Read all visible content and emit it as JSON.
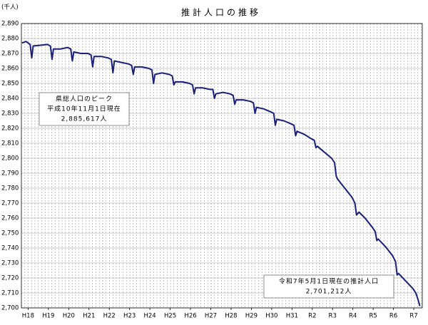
{
  "chart_data": {
    "type": "line",
    "title": "推計人口の推移",
    "y_unit": "(千人)",
    "color": "#1a1f7a",
    "grid": true,
    "xlim": [
      -0.33,
      19.42
    ],
    "xticks": [
      {
        "value": 0,
        "label": "H18"
      },
      {
        "value": 1,
        "label": "H19"
      },
      {
        "value": 2,
        "label": "H20"
      },
      {
        "value": 3,
        "label": "H21"
      },
      {
        "value": 4,
        "label": "H22"
      },
      {
        "value": 5,
        "label": "H23"
      },
      {
        "value": 6,
        "label": "H24"
      },
      {
        "value": 7,
        "label": "H25"
      },
      {
        "value": 8,
        "label": "H26"
      },
      {
        "value": 9,
        "label": "H27"
      },
      {
        "value": 10,
        "label": "H28"
      },
      {
        "value": 11,
        "label": "H29"
      },
      {
        "value": 12,
        "label": "H30"
      },
      {
        "value": 13,
        "label": "H31"
      },
      {
        "value": 14,
        "label": "R2"
      },
      {
        "value": 15,
        "label": "R3"
      },
      {
        "value": 16,
        "label": "R4"
      },
      {
        "value": 17,
        "label": "R5"
      },
      {
        "value": 18,
        "label": "R6"
      },
      {
        "value": 19,
        "label": "R7"
      }
    ],
    "ylim": [
      2700,
      2890
    ],
    "yticks": [
      {
        "value": 2700,
        "label": "2,700"
      },
      {
        "value": 2710,
        "label": "2,710"
      },
      {
        "value": 2720,
        "label": "2,720"
      },
      {
        "value": 2730,
        "label": "2,730"
      },
      {
        "value": 2740,
        "label": "2,740"
      },
      {
        "value": 2750,
        "label": "2,750"
      },
      {
        "value": 2760,
        "label": "2,760"
      },
      {
        "value": 2770,
        "label": "2,770"
      },
      {
        "value": 2780,
        "label": "2,780"
      },
      {
        "value": 2790,
        "label": "2,790"
      },
      {
        "value": 2800,
        "label": "2,800"
      },
      {
        "value": 2810,
        "label": "2,810"
      },
      {
        "value": 2820,
        "label": "2,820"
      },
      {
        "value": 2830,
        "label": "2,830"
      },
      {
        "value": 2840,
        "label": "2,840"
      },
      {
        "value": 2850,
        "label": "2,850"
      },
      {
        "value": 2860,
        "label": "2,860"
      },
      {
        "value": 2870,
        "label": "2,870"
      },
      {
        "value": 2880,
        "label": "2,880"
      },
      {
        "value": 2890,
        "label": "2,890"
      }
    ],
    "x": [
      -0.3,
      -0.1,
      0.1,
      0.18,
      0.25,
      0.6,
      0.95,
      1.1,
      1.18,
      1.25,
      1.6,
      1.95,
      2.1,
      2.18,
      2.25,
      2.6,
      2.95,
      3.1,
      3.18,
      3.25,
      3.6,
      3.95,
      4.1,
      4.18,
      4.25,
      4.6,
      4.95,
      5.1,
      5.18,
      5.25,
      5.6,
      5.95,
      6.1,
      6.18,
      6.25,
      6.6,
      6.95,
      7.1,
      7.18,
      7.25,
      7.6,
      7.95,
      8.1,
      8.18,
      8.25,
      8.6,
      8.95,
      9.1,
      9.18,
      9.25,
      9.6,
      9.95,
      10.1,
      10.18,
      10.25,
      10.6,
      10.95,
      11.1,
      11.18,
      11.25,
      11.6,
      11.95,
      12.1,
      12.18,
      12.25,
      12.6,
      12.95,
      13.1,
      13.18,
      13.25,
      13.6,
      13.95,
      14.1,
      14.18,
      14.25,
      14.6,
      14.95,
      15.1,
      15.18,
      15.25,
      15.6,
      15.95,
      16.1,
      16.18,
      16.3,
      16.6,
      16.95,
      17.1,
      17.18,
      17.25,
      17.6,
      17.95,
      18.1,
      18.18,
      18.25,
      18.6,
      18.95,
      19.1,
      19.2,
      19.3
    ],
    "values": [
      2877,
      2878,
      2876,
      2867,
      2875,
      2875.5,
      2876,
      2875,
      2866,
      2873,
      2873,
      2874,
      2873,
      2865,
      2871,
      2870,
      2870,
      2869,
      2861,
      2868,
      2868,
      2867,
      2866,
      2857,
      2865,
      2864,
      2863,
      2862,
      2856,
      2861,
      2861,
      2860,
      2859,
      2850,
      2856,
      2857,
      2856,
      2855,
      2849,
      2851,
      2851,
      2850,
      2849,
      2843,
      2847,
      2847,
      2846,
      2846,
      2840,
      2843,
      2844,
      2843,
      2842,
      2836,
      2839,
      2839,
      2838,
      2837,
      2830,
      2834,
      2833,
      2831,
      2830,
      2822,
      2826,
      2825,
      2823,
      2822,
      2815,
      2818,
      2816,
      2813,
      2812,
      2807,
      2808,
      2804,
      2800,
      2797,
      2788,
      2786,
      2780,
      2774,
      2770,
      2762,
      2764,
      2760,
      2754,
      2751,
      2745,
      2746,
      2741,
      2735,
      2731,
      2722,
      2723,
      2718,
      2713,
      2710,
      2706,
      2701.212
    ],
    "annotations": [
      {
        "lines": [
          "県総人口のピーク",
          "平成10年11月1日現在",
          "2,885,617人"
        ]
      },
      {
        "lines": [
          "令和7年5月1日現在の推計人口",
          "2,701,212人"
        ]
      }
    ]
  }
}
